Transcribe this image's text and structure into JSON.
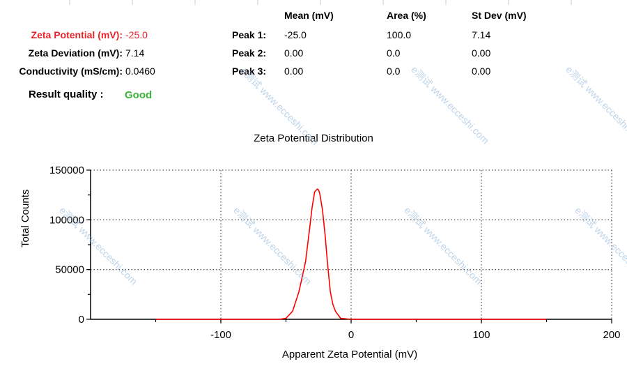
{
  "summary": {
    "zeta_potential": {
      "label": "Zeta Potential (mV):",
      "value": "-25.0"
    },
    "zeta_deviation": {
      "label": "Zeta Deviation (mV):",
      "value": "7.14"
    },
    "conductivity": {
      "label": "Conductivity (mS/cm):",
      "value": "0.0460"
    },
    "result_quality": {
      "label": "Result quality :",
      "value": "Good"
    }
  },
  "peaks_table": {
    "headers": [
      "Mean (mV)",
      "Area (%)",
      "St Dev (mV)"
    ],
    "rows": [
      {
        "label": "Peak 1:",
        "mean": "-25.0",
        "area": "100.0",
        "stdev": "7.14"
      },
      {
        "label": "Peak 2:",
        "mean": "0.00",
        "area": "0.0",
        "stdev": "0.00"
      },
      {
        "label": "Peak 3:",
        "mean": "0.00",
        "area": "0.0",
        "stdev": "0.00"
      }
    ]
  },
  "watermark": "e测试 www.ecceshi.com",
  "colors": {
    "highlight": "#e8222a",
    "good": "#3cb43c",
    "curve": "#ff0000"
  },
  "chart_data": {
    "type": "line",
    "title": "Zeta Potential Distribution",
    "xlabel": "Apparent Zeta Potential (mV)",
    "ylabel": "Total Counts",
    "xlim": [
      -200,
      200
    ],
    "ylim": [
      0,
      150000
    ],
    "xticks": [
      -100,
      0,
      100,
      200
    ],
    "yticks": [
      0,
      50000,
      100000,
      150000
    ],
    "grid": "dotted",
    "series": [
      {
        "name": "Zeta Potential Distribution",
        "x": [
          -150,
          -55,
          -50,
          -45,
          -40,
          -35,
          -32,
          -30,
          -28,
          -26,
          -25,
          -24,
          -22,
          -20,
          -18,
          -16,
          -14,
          -12,
          -8,
          0,
          150
        ],
        "y": [
          0,
          0,
          1000,
          8000,
          28000,
          58000,
          90000,
          112000,
          128000,
          131000,
          130000,
          126000,
          110000,
          85000,
          55000,
          28000,
          15000,
          8000,
          1000,
          0,
          0
        ]
      }
    ]
  }
}
